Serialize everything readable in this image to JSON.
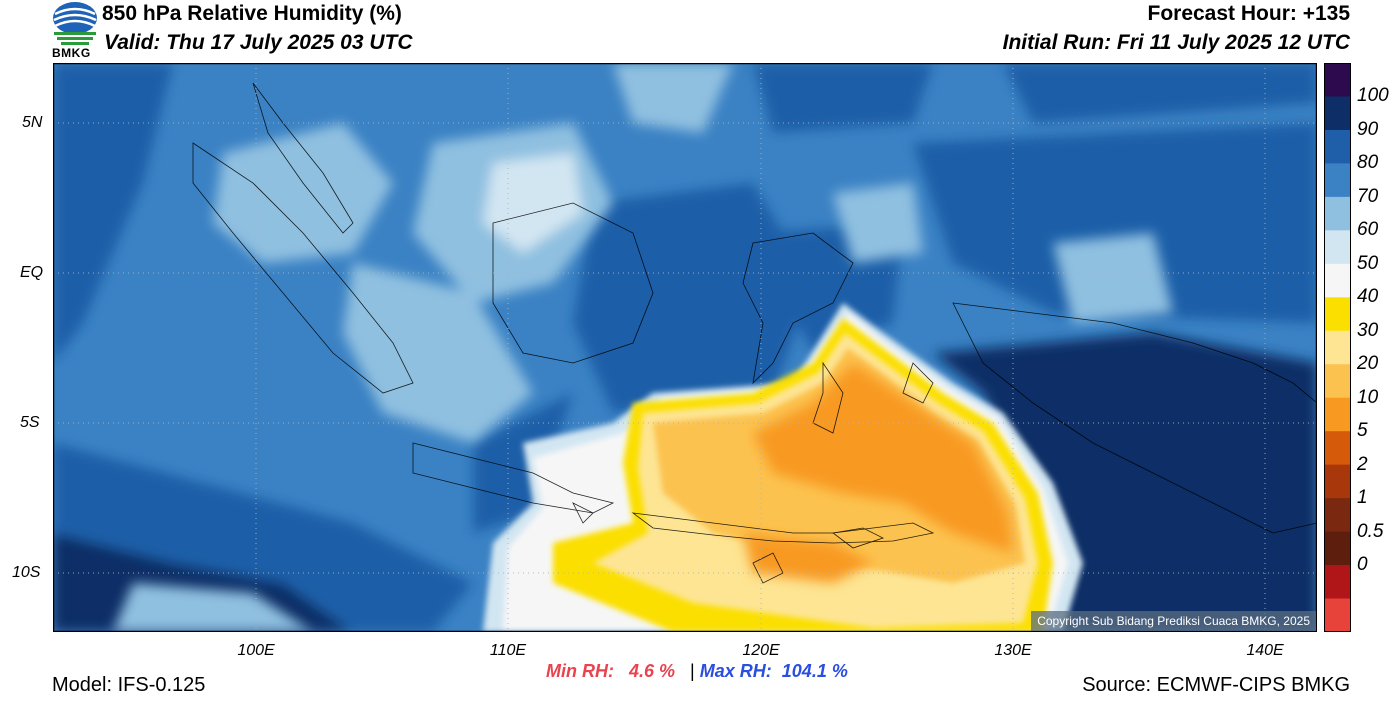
{
  "header": {
    "title": "850 hPa Relative Humidity (%)",
    "valid": "Valid: Thu 17 July 2025 03 UTC",
    "forecast_hour": "Forecast Hour: +135",
    "initial_run": "Initial Run: Fri 11 July 2025 12 UTC"
  },
  "logo": {
    "text": "BMKG",
    "icon": "bmkg-logo-icon"
  },
  "map": {
    "lat_labels": [
      "5N",
      "EQ",
      "5S",
      "10S"
    ],
    "lon_labels": [
      "100E",
      "110E",
      "120E",
      "130E",
      "140E"
    ],
    "copyright": "Copyright Sub Bidang Prediksi Cuaca BMKG, 2025"
  },
  "colorbar": {
    "labels": [
      "100",
      "90",
      "80",
      "70",
      "60",
      "50",
      "40",
      "30",
      "20",
      "10",
      "5",
      "2",
      "1",
      "0.5",
      "0"
    ],
    "colors": [
      "#2d0a4e",
      "#0d2e66",
      "#1f5ea8",
      "#3b82c4",
      "#8fc0e0",
      "#d2e6f2",
      "#f6f6f6",
      "#fbdf00",
      "#fde594",
      "#fcc24f",
      "#f89a22",
      "#d55a0a",
      "#a8380b",
      "#7a2810",
      "#5e1e0e",
      "#b01618",
      "#e8433a"
    ]
  },
  "stats": {
    "min_label": "Min RH:",
    "min_value": "4.6 %",
    "separator": "|",
    "max_label": "Max RH:",
    "max_value": "104.1 %"
  },
  "footer": {
    "model": "Model: IFS-0.125",
    "source": "Source: ECMWF-CIPS BMKG"
  }
}
